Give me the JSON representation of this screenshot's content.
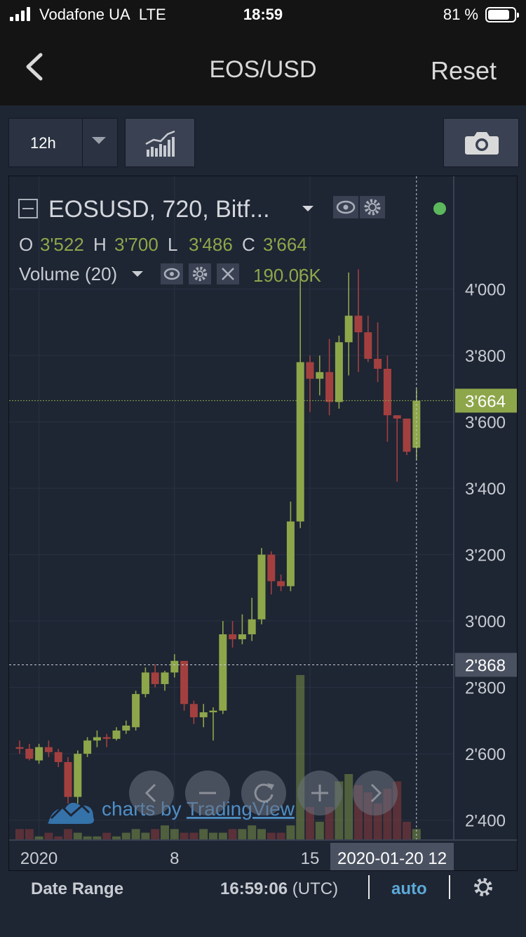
{
  "status": {
    "carrier": "Vodafone UA",
    "network": "LTE",
    "time": "18:59",
    "battery": "81 %",
    "signal_bars": 4
  },
  "nav": {
    "title": "EOS/USD",
    "reset": "Reset",
    "back_icon": "chevron-left-icon"
  },
  "toolbar": {
    "interval": "12h",
    "indicators_icon": "indicators-icon",
    "camera_icon": "camera-icon"
  },
  "legend": {
    "symbol": "EOSUSD, 720, Bitf...",
    "ohlc": [
      {
        "k": "O",
        "v": "3'522"
      },
      {
        "k": "H",
        "v": "3'700"
      },
      {
        "k": "L",
        "v": "3'486"
      },
      {
        "k": "C",
        "v": "3'664"
      }
    ],
    "volume_label": "Volume (20)",
    "volume_value": "190.06K"
  },
  "watermark": {
    "prefix": "charts by ",
    "brand": "TradingView"
  },
  "price_labels": {
    "last": "3'664",
    "crosshair": "2'868"
  },
  "time_label": "2020-01-20 12",
  "bottom": {
    "date_range": "Date Range",
    "clock": "16:59:06",
    "tz": "(UTC)",
    "auto": "auto"
  },
  "colors": {
    "up": "#8ea64a",
    "down": "#a3403f",
    "bg": "#1e2533",
    "accent": "#5ca9d6"
  },
  "chart_data": {
    "type": "candlestick",
    "y_ticks": [
      "4'000",
      "3'800",
      "3'600",
      "3'400",
      "3'200",
      "3'000",
      "2'800",
      "2'600",
      "2'400"
    ],
    "x_ticks": [
      "2020",
      "8",
      "15"
    ],
    "ylim": [
      2340,
      4340
    ],
    "interval": "12h",
    "last_price": 3664,
    "crosshair_price": 2868,
    "candles": [
      [
        2620,
        2640,
        2600,
        2615
      ],
      [
        2615,
        2630,
        2580,
        2585
      ],
      [
        2580,
        2630,
        2570,
        2620
      ],
      [
        2620,
        2640,
        2590,
        2605
      ],
      [
        2605,
        2615,
        2560,
        2575
      ],
      [
        2575,
        2590,
        2450,
        2470
      ],
      [
        2470,
        2610,
        2450,
        2600
      ],
      [
        2600,
        2650,
        2590,
        2640
      ],
      [
        2640,
        2670,
        2620,
        2650
      ],
      [
        2650,
        2660,
        2620,
        2645
      ],
      [
        2645,
        2680,
        2640,
        2670
      ],
      [
        2670,
        2700,
        2660,
        2685
      ],
      [
        2680,
        2790,
        2670,
        2780
      ],
      [
        2780,
        2860,
        2770,
        2845
      ],
      [
        2845,
        2870,
        2800,
        2810
      ],
      [
        2810,
        2850,
        2790,
        2845
      ],
      [
        2845,
        2900,
        2830,
        2880
      ],
      [
        2880,
        2880,
        2730,
        2750
      ],
      [
        2750,
        2760,
        2690,
        2710
      ],
      [
        2710,
        2750,
        2680,
        2725
      ],
      [
        2725,
        2740,
        2640,
        2730
      ],
      [
        2730,
        3000,
        2720,
        2960
      ],
      [
        2960,
        3000,
        2920,
        2945
      ],
      [
        2945,
        3020,
        2930,
        2960
      ],
      [
        2960,
        3070,
        2940,
        3005
      ],
      [
        3005,
        3220,
        2990,
        3200
      ],
      [
        3200,
        3210,
        3080,
        3120
      ],
      [
        3120,
        3140,
        3090,
        3105
      ],
      [
        3105,
        3360,
        3090,
        3300
      ],
      [
        3300,
        4060,
        3280,
        3780
      ],
      [
        3780,
        3800,
        3630,
        3730
      ],
      [
        3730,
        3800,
        3680,
        3750
      ],
      [
        3750,
        3850,
        3620,
        3660
      ],
      [
        3660,
        3860,
        3640,
        3840
      ],
      [
        3840,
        4050,
        3740,
        3920
      ],
      [
        3920,
        4060,
        3750,
        3870
      ],
      [
        3870,
        3920,
        3780,
        3790
      ],
      [
        3790,
        3900,
        3720,
        3760
      ],
      [
        3760,
        3800,
        3540,
        3620
      ],
      [
        3620,
        3620,
        3420,
        3610
      ],
      [
        3610,
        3610,
        3500,
        3510
      ],
      [
        3522,
        3700,
        3486,
        3664
      ]
    ],
    "volumes": [
      3,
      3,
      1,
      2,
      1,
      3,
      2,
      1,
      1,
      2,
      1,
      2,
      3,
      2,
      3,
      4,
      3,
      2,
      2,
      3,
      2,
      2,
      3,
      3,
      4,
      3,
      2,
      2,
      4,
      45,
      9,
      5,
      9,
      16,
      18,
      15,
      13,
      10,
      14,
      16,
      5,
      3
    ]
  }
}
